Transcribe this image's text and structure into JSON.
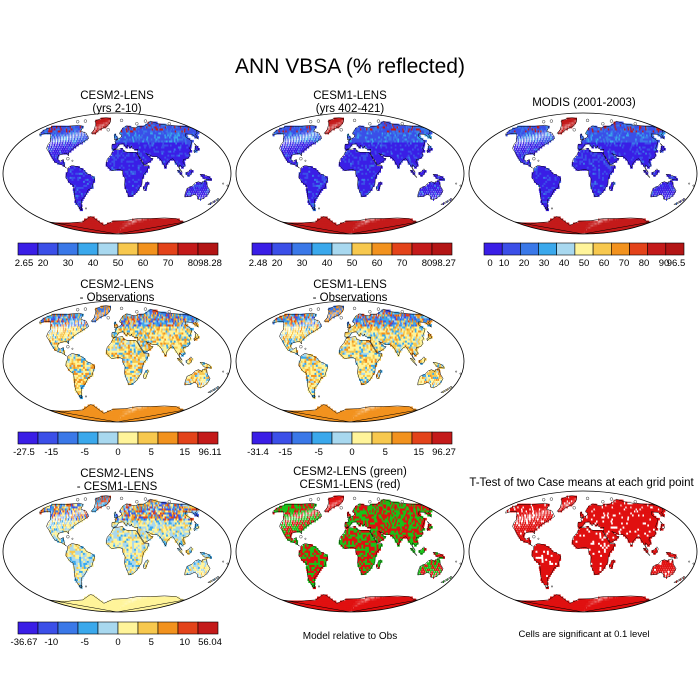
{
  "title": "ANN VBSA (% reflected)",
  "panels": [
    {
      "id": "p1",
      "title1": "CESM2-LENS",
      "title2": "(yrs 2-10)",
      "style": "abs",
      "colorbar": {
        "labels": [
          "2.65",
          "20",
          "30",
          "40",
          "50",
          "60",
          "70",
          "80",
          "98.28"
        ]
      }
    },
    {
      "id": "p2",
      "title1": "CESM1-LENS",
      "title2": "(yrs 402-421)",
      "style": "abs",
      "colorbar": {
        "labels": [
          "2.48",
          "20",
          "30",
          "40",
          "50",
          "60",
          "70",
          "80",
          "98.27"
        ]
      }
    },
    {
      "id": "p3",
      "title1": "MODIS (2001-2003)",
      "title2": "",
      "style": "abs",
      "colorbar": {
        "labels": [
          "0",
          "10",
          "20",
          "30",
          "40",
          "50",
          "60",
          "70",
          "80",
          "90",
          "96.5"
        ]
      }
    },
    {
      "id": "p4",
      "title1": "CESM2-LENS",
      "title2": "- Observations",
      "style": "diff",
      "colorbar": {
        "labels": [
          "-27.5",
          "-15",
          "-5",
          "0",
          "5",
          "15",
          "96.11"
        ]
      }
    },
    {
      "id": "p5",
      "title1": "CESM1-LENS",
      "title2": "- Observations",
      "style": "diff",
      "colorbar": {
        "labels": [
          "-31.4",
          "-15",
          "-5",
          "0",
          "5",
          "15",
          "96.27"
        ]
      }
    },
    {
      "id": "p7",
      "title1": "CESM2-LENS",
      "title2": "- CESM1-LENS",
      "style": "diff2",
      "colorbar": {
        "labels": [
          "-36.67",
          "-10",
          "-5",
          "0",
          "5",
          "10",
          "56.04"
        ]
      }
    },
    {
      "id": "p8",
      "title1": "CESM2-LENS (green)",
      "title2": "CESM1-LENS (red)",
      "style": "greenred",
      "note": "Model relative to Obs"
    },
    {
      "id": "p9",
      "title1": "T-Test of two Case means at each grid point",
      "title2": "",
      "style": "ttest",
      "note": "Cells are significant at 0.1 level"
    }
  ],
  "colors": {
    "abs_scale": [
      "#3a1ee6",
      "#3b4fe8",
      "#3a78e8",
      "#3aa8ec",
      "#a8d8ef",
      "#fff49a",
      "#f7c84e",
      "#f2921e",
      "#e3431a",
      "#c41a1a",
      "#b31515"
    ],
    "diff_scale": [
      "#3a1ee6",
      "#3b4fe8",
      "#3a78e8",
      "#3aa8ec",
      "#a8d8ef",
      "#fff49a",
      "#f7c84e",
      "#f2921e",
      "#e3431a",
      "#c41a1a"
    ],
    "green": "#19c219",
    "red": "#e01010"
  }
}
